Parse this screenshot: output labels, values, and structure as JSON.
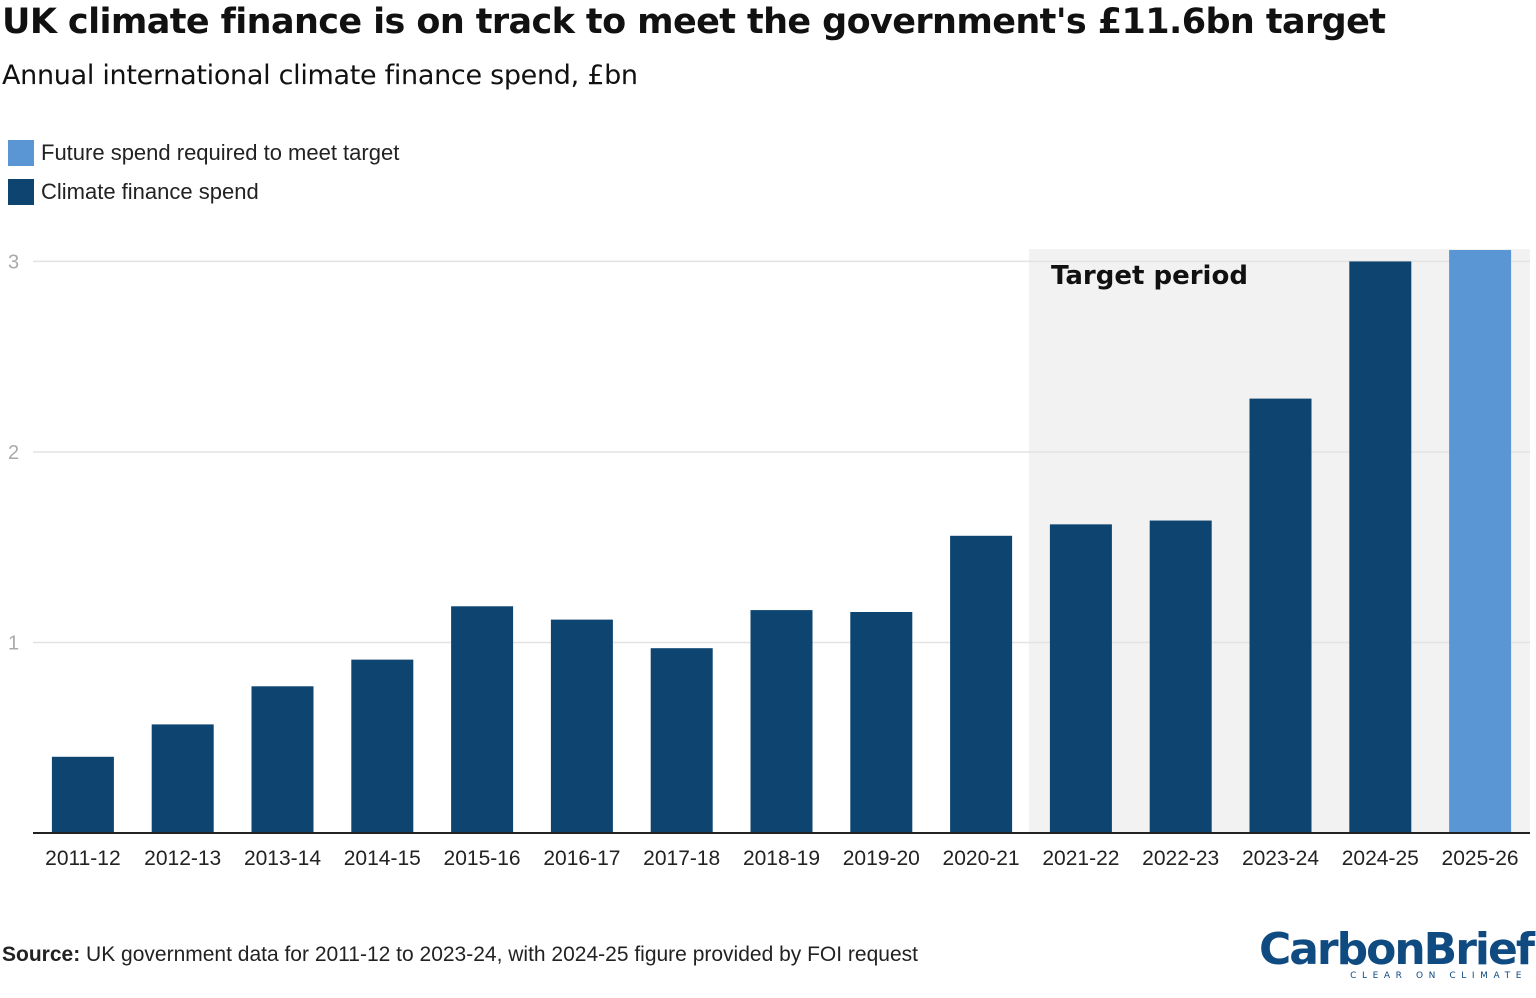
{
  "title": "UK climate finance is on track to meet the government's £11.6bn target",
  "subtitle": "Annual international climate finance spend, £bn",
  "legend": [
    {
      "label": "Future spend required to meet target",
      "color": "#5b96d4"
    },
    {
      "label": "Climate finance spend",
      "color": "#0e4470"
    }
  ],
  "source_label": "Source:",
  "source_text": "UK government data for 2011-12 to 2023-24, with 2024-25 figure provided by FOI request",
  "logo": {
    "name": "CarbonBrief",
    "tagline": "CLEAR ON CLIMATE"
  },
  "colors": {
    "actual": "#0e4470",
    "future": "#5b96d4",
    "target_band": "#f2f2f2",
    "grid": "#e3e3e3",
    "axis": "#222222",
    "tick": "#aaaaaa"
  },
  "chart_data": {
    "type": "bar",
    "title": "UK climate finance is on track to meet the government's £11.6bn target",
    "ylabel": "Annual international climate finance spend, £bn",
    "ylim": [
      0,
      3.06
    ],
    "yticks": [
      1,
      2,
      3
    ],
    "grid": true,
    "categories": [
      "2011-12",
      "2012-13",
      "2013-14",
      "2014-15",
      "2015-16",
      "2016-17",
      "2017-18",
      "2018-19",
      "2019-20",
      "2020-21",
      "2021-22",
      "2022-23",
      "2023-24",
      "2024-25",
      "2025-26"
    ],
    "series": [
      {
        "name": "Climate finance spend",
        "values": [
          0.4,
          0.57,
          0.77,
          0.91,
          1.19,
          1.12,
          0.97,
          1.17,
          1.16,
          1.56,
          1.62,
          1.64,
          2.28,
          3.0,
          null
        ]
      },
      {
        "name": "Future spend required to meet target",
        "values": [
          null,
          null,
          null,
          null,
          null,
          null,
          null,
          null,
          null,
          null,
          null,
          null,
          null,
          null,
          3.06
        ]
      }
    ],
    "annotation": {
      "label": "Target period",
      "start": "2021-22",
      "end": "2025-26"
    }
  }
}
